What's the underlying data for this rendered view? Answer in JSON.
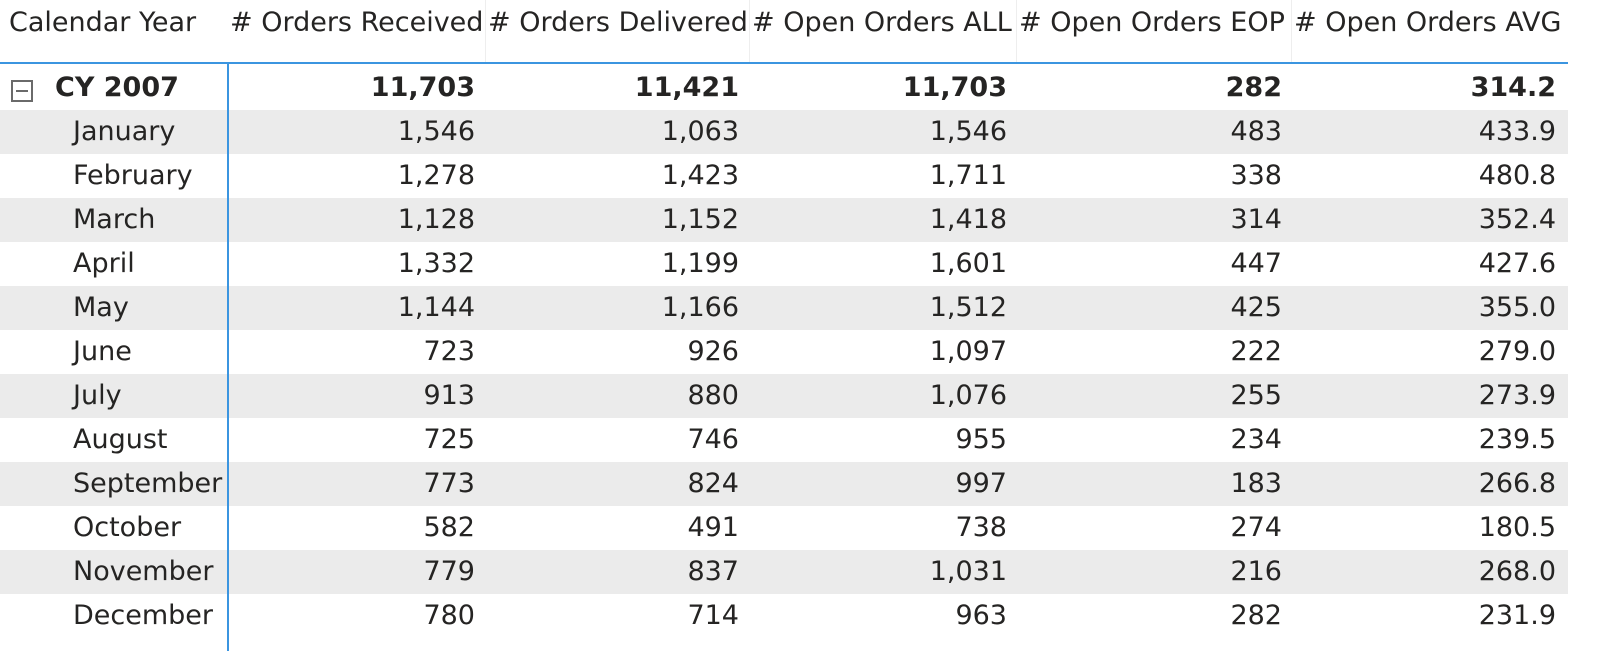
{
  "headers": {
    "year": "Calendar Year",
    "received": "# Orders Received",
    "delivered": "# Orders Delivered",
    "open_all": "# Open Orders ALL",
    "open_eop": "# Open Orders EOP",
    "open_avg": "# Open Orders AVG"
  },
  "total": {
    "label": "CY 2007",
    "received": "11,703",
    "delivered": "11,421",
    "open_all": "11,703",
    "open_eop": "282",
    "open_avg": "314.2"
  },
  "rows": [
    {
      "month": "January",
      "received": "1,546",
      "delivered": "1,063",
      "open_all": "1,546",
      "open_eop": "483",
      "open_avg": "433.9"
    },
    {
      "month": "February",
      "received": "1,278",
      "delivered": "1,423",
      "open_all": "1,711",
      "open_eop": "338",
      "open_avg": "480.8"
    },
    {
      "month": "March",
      "received": "1,128",
      "delivered": "1,152",
      "open_all": "1,418",
      "open_eop": "314",
      "open_avg": "352.4"
    },
    {
      "month": "April",
      "received": "1,332",
      "delivered": "1,199",
      "open_all": "1,601",
      "open_eop": "447",
      "open_avg": "427.6"
    },
    {
      "month": "May",
      "received": "1,144",
      "delivered": "1,166",
      "open_all": "1,512",
      "open_eop": "425",
      "open_avg": "355.0"
    },
    {
      "month": "June",
      "received": "723",
      "delivered": "926",
      "open_all": "1,097",
      "open_eop": "222",
      "open_avg": "279.0"
    },
    {
      "month": "July",
      "received": "913",
      "delivered": "880",
      "open_all": "1,076",
      "open_eop": "255",
      "open_avg": "273.9"
    },
    {
      "month": "August",
      "received": "725",
      "delivered": "746",
      "open_all": "955",
      "open_eop": "234",
      "open_avg": "239.5"
    },
    {
      "month": "September",
      "received": "773",
      "delivered": "824",
      "open_all": "997",
      "open_eop": "183",
      "open_avg": "266.8"
    },
    {
      "month": "October",
      "received": "582",
      "delivered": "491",
      "open_all": "738",
      "open_eop": "274",
      "open_avg": "180.5"
    },
    {
      "month": "November",
      "received": "779",
      "delivered": "837",
      "open_all": "1,031",
      "open_eop": "216",
      "open_avg": "268.0"
    },
    {
      "month": "December",
      "received": "780",
      "delivered": "714",
      "open_all": "963",
      "open_eop": "282",
      "open_avg": "231.9"
    }
  ],
  "colors": {
    "accent_line": "#3b95e0",
    "band": "#ebebeb",
    "text": "#252423"
  },
  "icons": {
    "collapse": "collapse-minus-icon"
  }
}
